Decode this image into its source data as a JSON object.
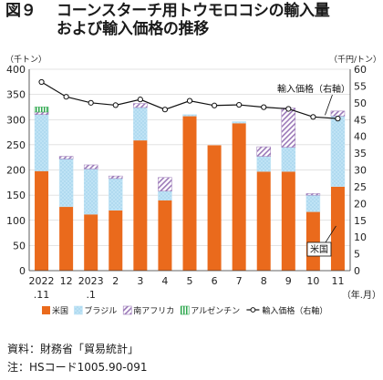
{
  "title": {
    "figure_no": "図９",
    "line1": "コーンスターチ用トウモロコシの輸入量",
    "line2": "および輸入価格の推移"
  },
  "notes": {
    "source": "資料：財務省「貿易統計」",
    "note": "注：HSコード1005.90-091"
  },
  "chart_data": {
    "type": "bar",
    "stacked": true,
    "categories": [
      [
        "2022",
        ".11"
      ],
      [
        "12",
        ""
      ],
      [
        "2023",
        ".1"
      ],
      [
        "2",
        ""
      ],
      [
        "3",
        ""
      ],
      [
        "4",
        ""
      ],
      [
        "5",
        ""
      ],
      [
        "6",
        ""
      ],
      [
        "7",
        ""
      ],
      [
        "8",
        ""
      ],
      [
        "9",
        ""
      ],
      [
        "10",
        ""
      ],
      [
        "11",
        ""
      ]
    ],
    "x_unit": "（年.月）",
    "y_left": {
      "label": "（千トン）",
      "min": 0,
      "max": 400,
      "ticks": [
        0,
        50,
        100,
        150,
        200,
        250,
        300,
        350,
        400
      ]
    },
    "y_right": {
      "label": "（千円/トン）",
      "min": 0,
      "max": 60,
      "ticks": [
        0,
        5,
        10,
        15,
        20,
        25,
        30,
        35,
        40,
        45,
        50,
        55,
        60
      ]
    },
    "series": [
      {
        "name": "米国",
        "color": "#ea6a1c",
        "pattern": "solid",
        "values": [
          198,
          127,
          112,
          120,
          259,
          140,
          307,
          249,
          293,
          197,
          197,
          117,
          167
        ]
      },
      {
        "name": "ブラジル",
        "color": "#bfe3f5",
        "pattern": "dots",
        "values": [
          112,
          95,
          90,
          63,
          65,
          18,
          3,
          0,
          3,
          30,
          48,
          33,
          140
        ]
      },
      {
        "name": "南アフリカ",
        "color": "#9b79b8",
        "pattern": "diagonal",
        "values": [
          5,
          5,
          8,
          5,
          8,
          27,
          0,
          0,
          0,
          19,
          78,
          3,
          10
        ]
      },
      {
        "name": "アルゼンチン",
        "color": "#2fa84f",
        "pattern": "vertical",
        "values": [
          10,
          0,
          0,
          0,
          0,
          0,
          0,
          0,
          0,
          0,
          0,
          0,
          0
        ]
      }
    ],
    "price": {
      "name": "輸入価格（右軸）",
      "values": [
        56.2,
        51.8,
        50.0,
        49.3,
        51.0,
        48.0,
        50.6,
        49.2,
        49.4,
        48.7,
        48.2,
        45.8,
        45.3
      ]
    },
    "annotations": {
      "price_label": "輸入価格（右軸）",
      "usa_label": "米国"
    },
    "legend": {
      "position": "bottom",
      "items": [
        "米国",
        "ブラジル",
        "南アフリカ",
        "アルゼンチン",
        "輸入価格（右軸）"
      ]
    }
  }
}
